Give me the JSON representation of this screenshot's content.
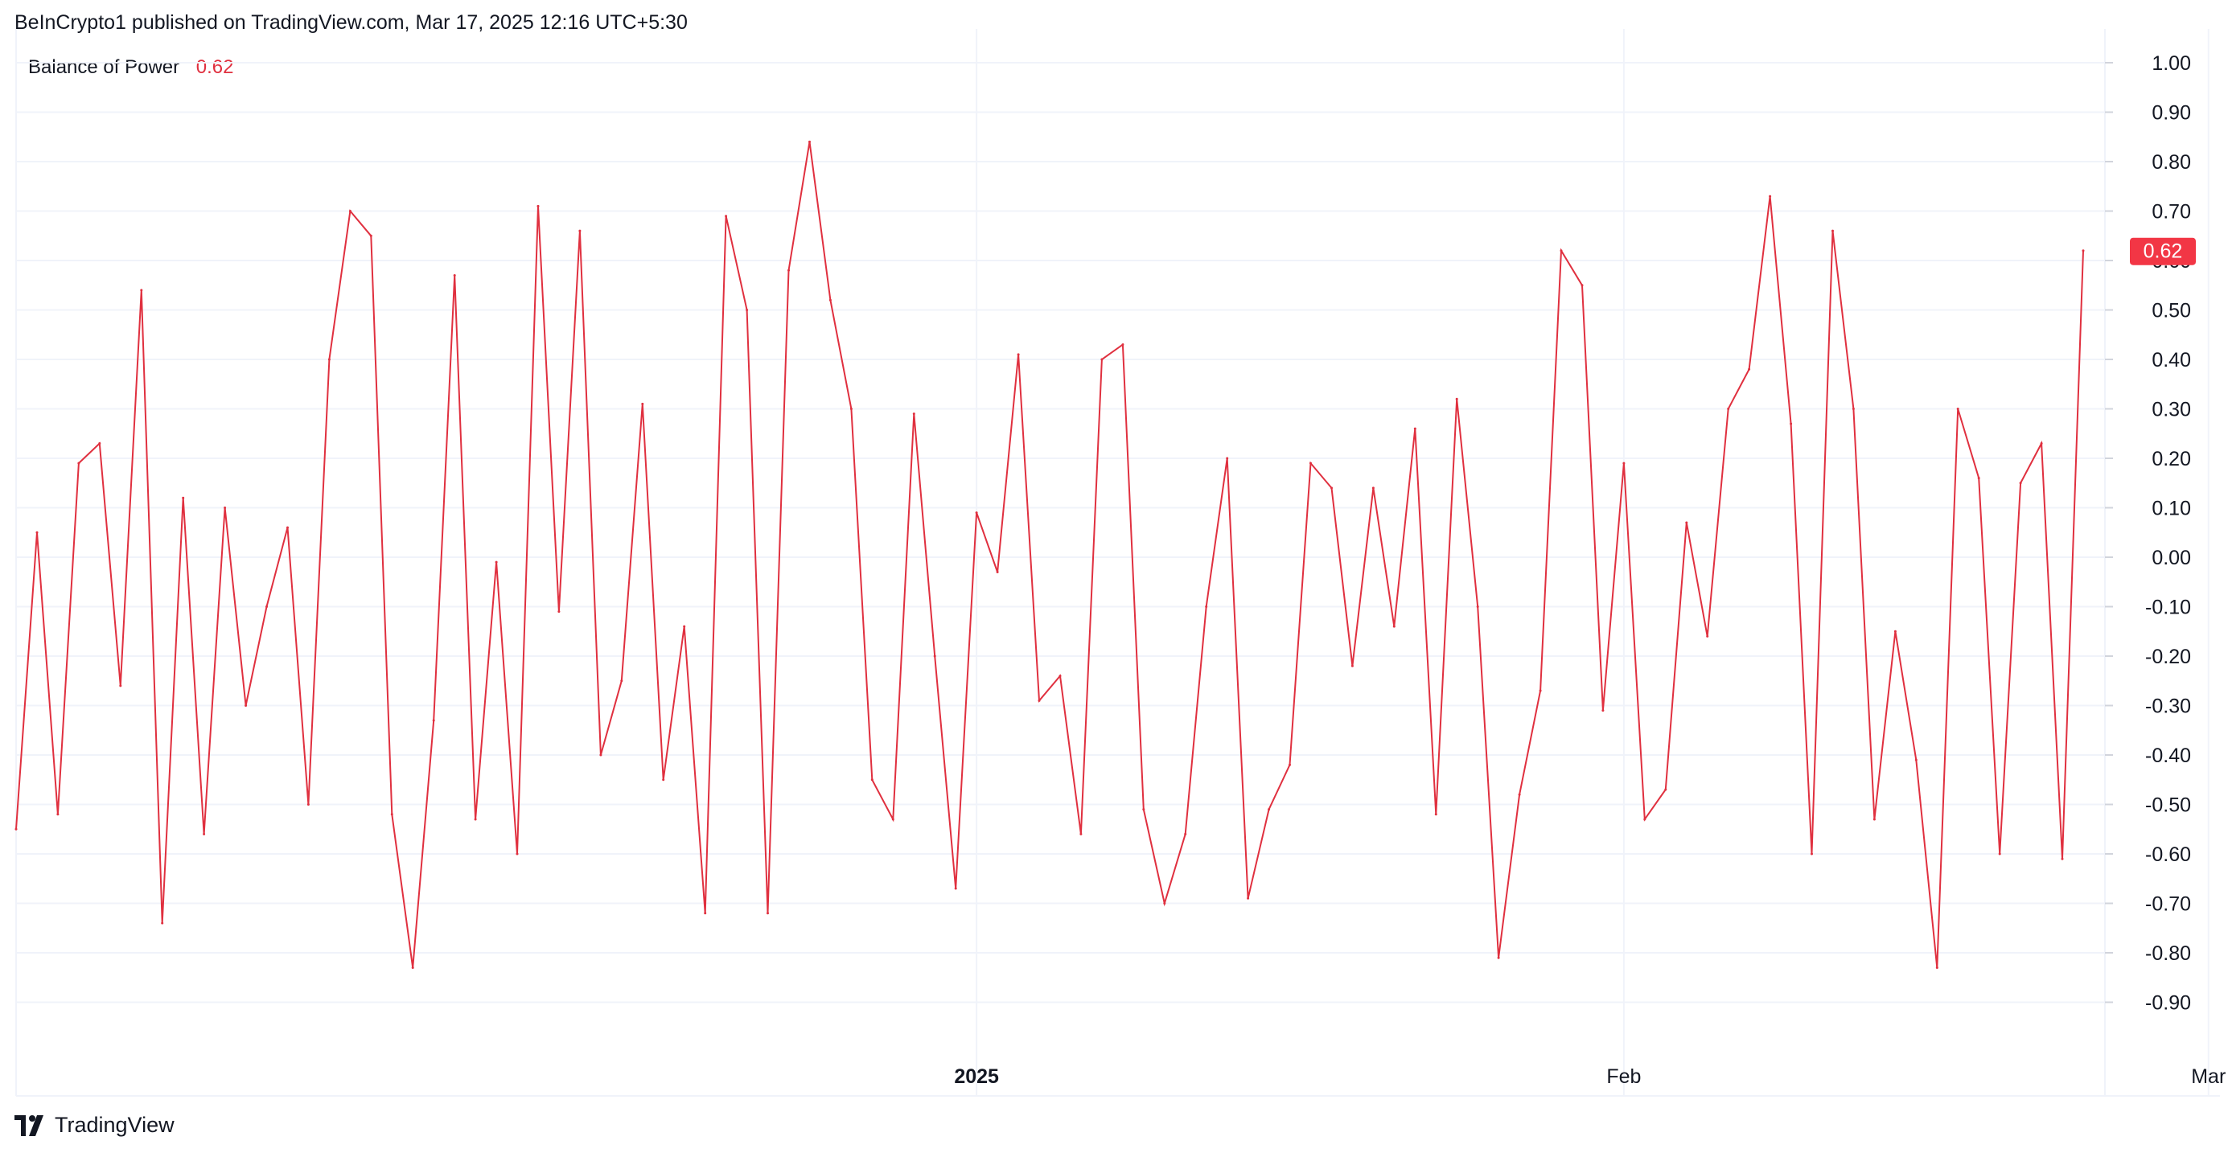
{
  "header": {
    "published_text": "BeInCrypto1 published on TradingView.com, Mar 17, 2025 12:16 UTC+5:30"
  },
  "legend": {
    "indicator_name": "Balance of Power",
    "value_text": "0.62"
  },
  "price_label": "0.62",
  "footer": {
    "brand": "TradingView",
    "logo_icon": "tradingview-logo-icon"
  },
  "colors": {
    "line": "#e0303f",
    "grid": "#f0f3fa",
    "badge": "#f23645"
  },
  "chart_data": {
    "type": "line",
    "title": "Balance of Power",
    "ylim": [
      -1.0,
      1.05
    ],
    "y_ticks": [
      "1.00",
      "0.90",
      "0.80",
      "0.70",
      "0.60",
      "0.50",
      "0.40",
      "0.30",
      "0.20",
      "0.10",
      "0.00",
      "-0.10",
      "-0.20",
      "-0.30",
      "-0.40",
      "-0.50",
      "-0.60",
      "-0.70",
      "-0.80",
      "-0.90"
    ],
    "x_ticks": [
      {
        "label": "2025",
        "index": 46,
        "bold": true
      },
      {
        "label": "Feb",
        "index": 77,
        "bold": false
      },
      {
        "label": "Mar",
        "index": 105,
        "bold": false
      }
    ],
    "grid": true,
    "series": [
      {
        "name": "Balance of Power",
        "color": "#e0303f",
        "values": [
          -0.55,
          0.05,
          -0.52,
          0.19,
          0.23,
          -0.26,
          0.54,
          -0.74,
          0.12,
          -0.56,
          0.1,
          -0.3,
          -0.1,
          0.06,
          -0.5,
          0.4,
          0.7,
          0.65,
          -0.52,
          -0.83,
          -0.33,
          0.57,
          -0.53,
          -0.01,
          -0.6,
          0.71,
          -0.11,
          0.66,
          -0.4,
          -0.25,
          0.31,
          -0.45,
          -0.14,
          -0.72,
          0.69,
          0.5,
          -0.72,
          0.58,
          0.84,
          0.52,
          0.3,
          -0.45,
          -0.53,
          0.29,
          -0.2,
          -0.67,
          0.09,
          -0.03,
          0.41,
          -0.29,
          -0.24,
          -0.56,
          0.4,
          0.43,
          -0.51,
          -0.7,
          -0.56,
          -0.1,
          0.2,
          -0.69,
          -0.51,
          -0.42,
          0.19,
          0.14,
          -0.22,
          0.14,
          -0.14,
          0.26,
          -0.52,
          0.32,
          -0.1,
          -0.81,
          -0.48,
          -0.27,
          0.62,
          0.55,
          -0.31,
          0.19,
          -0.53,
          -0.47,
          0.07,
          -0.16,
          0.3,
          0.38,
          0.73,
          0.27,
          -0.6,
          0.66,
          0.3,
          -0.53,
          -0.15,
          -0.41,
          -0.83,
          0.3,
          0.16,
          -0.6,
          0.15,
          0.23,
          -0.61,
          0.62
        ]
      }
    ]
  }
}
